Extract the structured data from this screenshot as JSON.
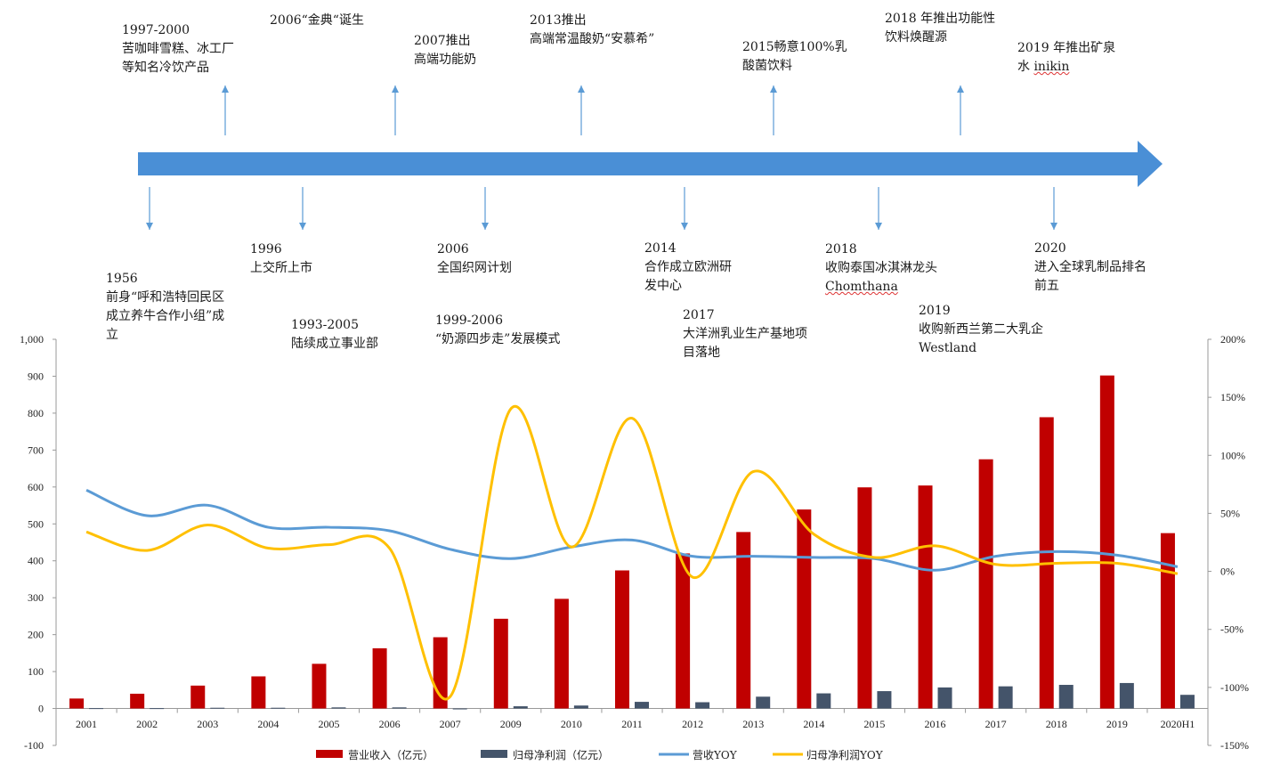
{
  "timeline": {
    "above": [
      {
        "lines": [
          "1997-2000",
          "苦咖啡雪糕、冰工厂",
          "等知名冷饮产品"
        ]
      },
      {
        "lines": [
          "2006“金典“诞生"
        ]
      },
      {
        "lines": [
          "2007推出",
          "高端功能奶"
        ]
      },
      {
        "lines": [
          "2013推出",
          "高端常温酸奶“安慕希”"
        ]
      },
      {
        "lines": [
          "2015畅意100%乳",
          "酸菌饮料"
        ]
      },
      {
        "lines": [
          "2018 年推出功能性",
          "饮料焕醒源"
        ]
      },
      {
        "lines": [
          "2019 年推出矿泉",
          "水 inikin"
        ]
      }
    ],
    "below": [
      {
        "lines": [
          "1956",
          "前身“呼和浩特回民区",
          "成立养牛合作小组”成",
          "立"
        ]
      },
      {
        "lines": [
          "1996",
          "上交所上市"
        ]
      },
      {
        "lines": [
          "1993-2005",
          "陆续成立事业部"
        ]
      },
      {
        "lines": [
          "2006",
          "全国织网计划"
        ]
      },
      {
        "lines": [
          "1999-2006",
          "“奶源四步走”发展模式"
        ]
      },
      {
        "lines": [
          "2014",
          "合作成立欧洲研",
          "发中心"
        ]
      },
      {
        "lines": [
          "2017",
          "大洋洲乳业生产基地项",
          "目落地"
        ]
      },
      {
        "lines": [
          "2018",
          "收购泰国冰淇淋龙头",
          "Chomthana"
        ]
      },
      {
        "lines": [
          "2019",
          "收购新西兰第二大乳企",
          "Westland"
        ]
      },
      {
        "lines": [
          "2020",
          "进入全球乳制品排名",
          "前五"
        ]
      }
    ]
  },
  "colors": {
    "arrow": "#4a8fd6",
    "revenue": "#c00000",
    "profit": "#44546a",
    "revenue_yoy": "#5b9bd5",
    "profit_yoy": "#ffc000"
  },
  "chart_data": {
    "type": "bar",
    "categories": [
      "2001",
      "2002",
      "2003",
      "2004",
      "2005",
      "2006",
      "2007",
      "2009",
      "2010",
      "2011",
      "2012",
      "2013",
      "2014",
      "2015",
      "2016",
      "2017",
      "2018",
      "2019",
      "2020H1"
    ],
    "left_axis": {
      "min": -100,
      "max": 1000,
      "step": 100,
      "tick_labels": [
        "-100",
        "0",
        "100",
        "200",
        "300",
        "400",
        "500",
        "600",
        "700",
        "800",
        "900",
        "1,000"
      ]
    },
    "right_axis": {
      "min": -150,
      "max": 200,
      "step": 50,
      "tick_labels": [
        "-150%",
        "-100%",
        "-50%",
        "0%",
        "50%",
        "100%",
        "150%",
        "200%"
      ]
    },
    "series": [
      {
        "name": "营业收入（亿元）",
        "type": "bar",
        "axis": "left",
        "values": [
          27,
          40,
          62,
          87,
          121,
          163,
          193,
          243,
          297,
          374,
          420,
          478,
          539,
          599,
          604,
          675,
          789,
          902,
          475
        ]
      },
      {
        "name": "归母净利润（亿元）",
        "type": "bar",
        "axis": "left",
        "values": [
          1,
          1,
          2,
          2,
          3,
          3,
          -1,
          6,
          8,
          18,
          17,
          32,
          41,
          47,
          57,
          60,
          64,
          69,
          37
        ]
      },
      {
        "name": "营收YOY",
        "type": "line",
        "axis": "right",
        "values": [
          70,
          48,
          57,
          38,
          38,
          35,
          19,
          11,
          21,
          27,
          13,
          13,
          12,
          11,
          1,
          13,
          17,
          14,
          4
        ]
      },
      {
        "name": "归母净利润YOY",
        "type": "line",
        "axis": "right",
        "values": [
          34,
          18,
          40,
          20,
          23,
          20,
          -108,
          140,
          21,
          132,
          -5,
          86,
          32,
          12,
          22,
          6,
          7,
          7,
          -2
        ]
      }
    ],
    "legend_position": "bottom",
    "grid": false
  }
}
